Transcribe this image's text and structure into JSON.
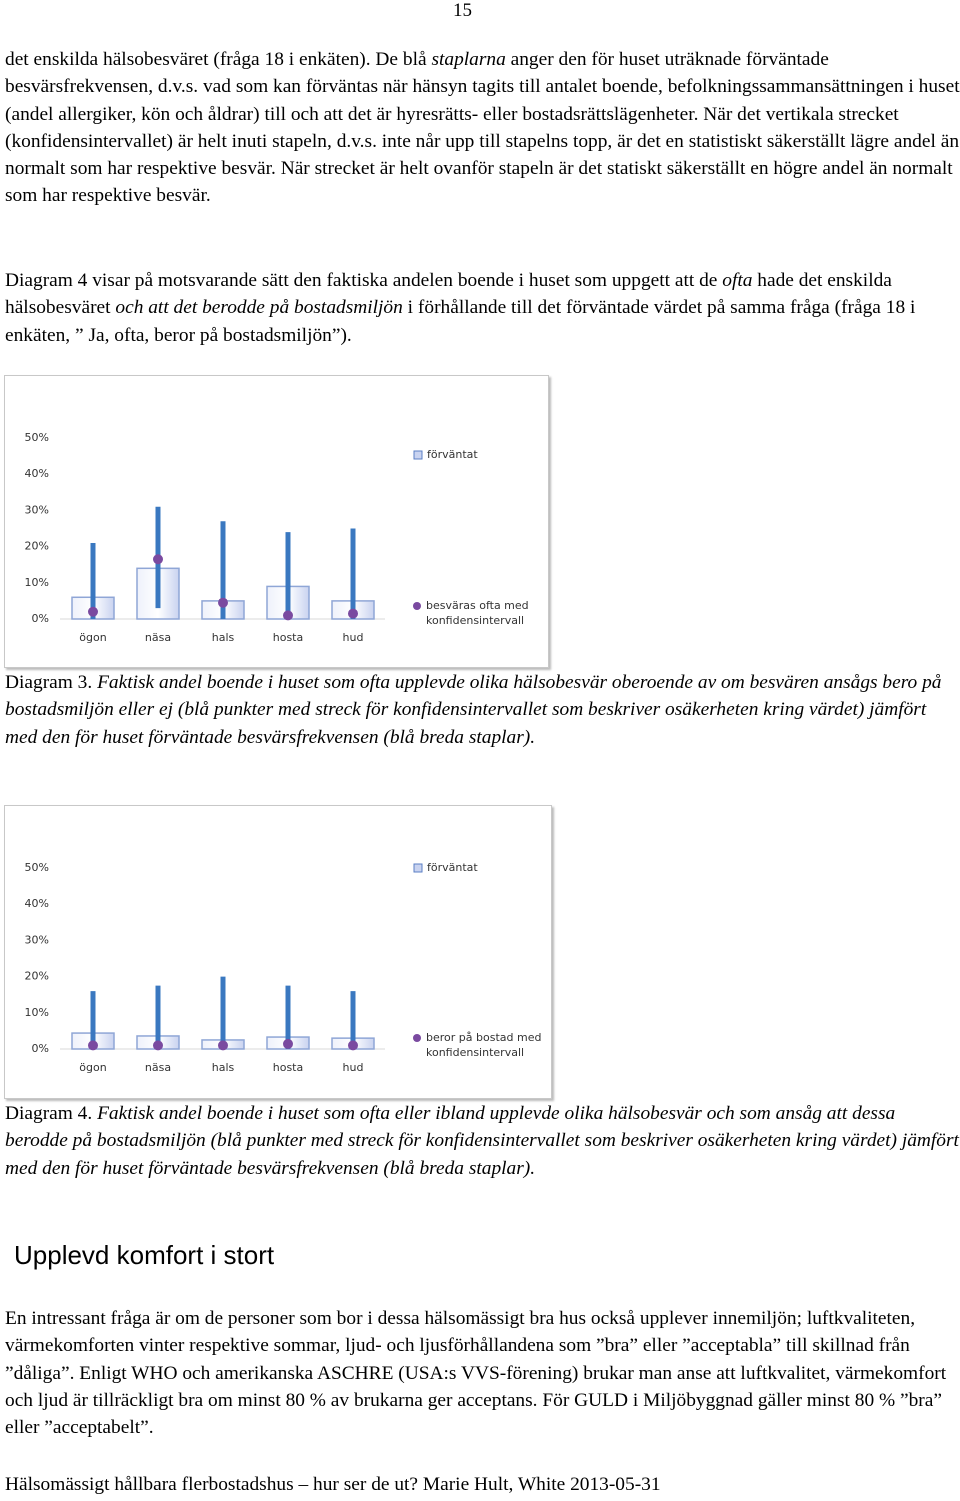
{
  "page_number": "15",
  "paragraphs": [
    [
      {
        "text": "det enskilda hälsobesväret (fråga 18 i enkäten). De blå "
      },
      {
        "text": "staplarna",
        "italic": true
      },
      {
        "text": " anger den för huset uträknade förväntade besvärsfrekvensen, d.v.s. vad som kan förväntas när hänsyn tagits till antalet boende, befolkningssammansättningen i huset (andel allergiker, kön och åldrar) till och att det är hyresrätts- eller bostadsrättslägenheter. När det vertikala strecket (konfidensintervallet) är helt inuti stapeln, d.v.s. inte når upp till stapelns topp, är det en statistiskt säkerställt lägre andel än normalt som har respektive besvär. När strecket är helt ovanför stapeln är det statiskt säkerställt en högre andel än normalt som har respektive besvär."
      }
    ],
    [
      {
        "text": "Diagram 4 visar på motsvarande sätt den faktiska andelen boende i huset som uppgett att de "
      },
      {
        "text": "ofta",
        "italic": true
      },
      {
        "text": " hade det enskilda hälsobesväret "
      },
      {
        "text": "och att det berodde på bostadsmiljön",
        "italic": true
      },
      {
        "text": " i förhållande till det förväntade värdet på samma fråga (fråga 18 i enkäten, ” Ja, ofta, beror på bostadsmiljön”)."
      }
    ]
  ],
  "chart_data": [
    {
      "type": "bar-dot",
      "categories": [
        "ögon",
        "näsa",
        "hals",
        "hosta",
        "hud"
      ],
      "ylim": [
        0,
        50
      ],
      "yticks": [
        {
          "value": 0,
          "label": "0%"
        },
        {
          "value": 10,
          "label": "10%"
        },
        {
          "value": 20,
          "label": "20%"
        },
        {
          "value": 30,
          "label": "30%"
        },
        {
          "value": 40,
          "label": "40%"
        },
        {
          "value": 50,
          "label": "50%"
        }
      ],
      "series": [
        {
          "name": "förväntat",
          "color": "#c9d3f0",
          "values": [
            6,
            14,
            5,
            9,
            5
          ]
        },
        {
          "name": "besväras ofta med konfidensintervall",
          "color": "#7a4aa0",
          "values": [
            2,
            16.5,
            4.5,
            1,
            1.5
          ],
          "low": [
            0,
            3,
            0,
            0,
            0
          ],
          "high": [
            21,
            31,
            27,
            24,
            25
          ]
        }
      ]
    },
    {
      "type": "bar-dot",
      "categories": [
        "ögon",
        "näsa",
        "hals",
        "hosta",
        "hud"
      ],
      "ylim": [
        0,
        50
      ],
      "yticks": [
        {
          "value": 0,
          "label": "0%"
        },
        {
          "value": 10,
          "label": "10%"
        },
        {
          "value": 20,
          "label": "20%"
        },
        {
          "value": 30,
          "label": "30%"
        },
        {
          "value": 40,
          "label": "40%"
        },
        {
          "value": 50,
          "label": "50%"
        }
      ],
      "series": [
        {
          "name": "förväntat",
          "color": "#c9d3f0",
          "values": [
            4.4,
            3.6,
            2.5,
            3.3,
            3
          ]
        },
        {
          "name": "beror på bostad med konfidensintervall",
          "color": "#7a4aa0",
          "values": [
            1,
            1,
            1,
            1.4,
            1
          ],
          "low": [
            0,
            0,
            0,
            0,
            0
          ],
          "high": [
            16,
            17.5,
            20,
            17.5,
            16
          ]
        }
      ]
    }
  ],
  "captions": [
    {
      "label": "Diagram 3.",
      "text": " Faktisk andel boende i huset som ofta upplevde olika hälsobesvär oberoende av om besvären ansågs bero på bostadsmiljön eller ej (blå punkter med streck för konfidensintervallet som beskriver osäkerheten kring värdet) jämfört med den för huset förväntade besvärsfrekvensen (blå breda staplar)."
    },
    {
      "label": "Diagram 4.",
      "text": " Faktisk andel boende i huset som ofta eller ibland upplevde olika hälsobesvär och som ansåg att dessa berodde på bostadsmiljön (blå punkter med streck för konfidensintervallet som beskriver osäkerheten kring värdet) jämfört med den för huset förväntade besvärsfrekvensen (blå breda staplar)."
    }
  ],
  "heading": "Upplevd komfort i stort",
  "paragraph3": "En intressant fråga är om de personer som bor i dessa hälsomässigt bra hus också upplever innemiljön; luftkvaliteten, värmekomforten vinter respektive sommar, ljud- och ljusförhållandena som ”bra” eller ”acceptabla” till skillnad från ”dåliga”. Enligt WHO och amerikanska ASCHRE (USA:s VVS-förening) brukar man anse att luftkvalitet, värmekomfort och ljud är tillräckligt bra om minst 80 % av brukarna ger acceptans.  För GULD i Miljöbyggnad gäller minst 80 % ”bra” eller ”acceptabelt”.",
  "footer": "Hälsomässigt hållbara flerbostadshus – hur ser de ut? Marie Hult, White 2013-05-31"
}
